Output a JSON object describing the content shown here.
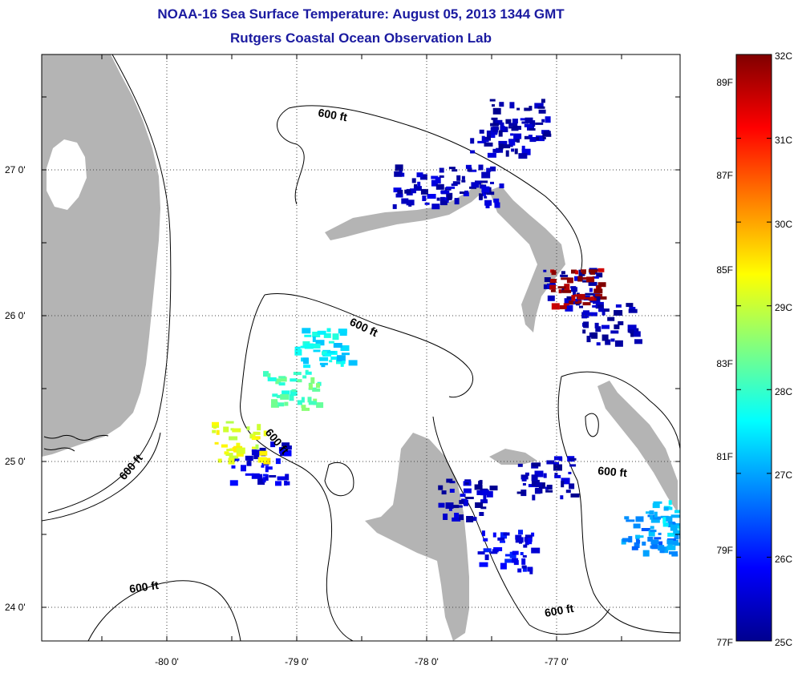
{
  "title": "NOAA-16 Sea Surface Temperature:  August 05, 2013 1344 GMT",
  "subtitle": "Rutgers Coastal Ocean Observation Lab",
  "map": {
    "x_ticks": [
      "-80 0'",
      "-79 0'",
      "-78 0'",
      "-77 0'"
    ],
    "y_ticks": [
      "27 0'",
      "26 0'",
      "25 0'",
      "24 0'"
    ],
    "contour_labels": [
      "600 ft",
      "600 ft",
      "600 ft",
      "600 ft",
      "600 ft",
      "600 ft",
      "600 ft"
    ],
    "land_color": "#b4b4b4",
    "sst_patches": [
      {
        "lon": -77.45,
        "lat": 27.25,
        "temp": 25.3
      },
      {
        "lon": -77.3,
        "lat": 27.35,
        "temp": 25.2
      },
      {
        "lon": -78.05,
        "lat": 26.9,
        "temp": 25.4
      },
      {
        "lon": -77.65,
        "lat": 26.9,
        "temp": 25.3
      },
      {
        "lon": -76.9,
        "lat": 26.2,
        "temp": 25.3
      },
      {
        "lon": -76.6,
        "lat": 25.95,
        "temp": 25.2
      },
      {
        "lon": -79.3,
        "lat": 25.0,
        "temp": 25.6
      },
      {
        "lon": -79.05,
        "lat": 25.5,
        "temp": 28.2
      },
      {
        "lon": -78.8,
        "lat": 25.8,
        "temp": 27.5
      },
      {
        "lon": -77.7,
        "lat": 24.75,
        "temp": 25.3
      },
      {
        "lon": -77.4,
        "lat": 24.4,
        "temp": 25.8
      },
      {
        "lon": -76.3,
        "lat": 24.5,
        "temp": 26.8
      },
      {
        "lon": -76.1,
        "lat": 24.6,
        "temp": 27.2
      },
      {
        "lon": -77.1,
        "lat": 24.9,
        "temp": 25.3
      },
      {
        "lon": -79.45,
        "lat": 25.15,
        "temp": 29.2
      },
      {
        "lon": -76.85,
        "lat": 26.2,
        "temp": 31.8
      }
    ]
  },
  "colorbar": {
    "celsius_labels": [
      "32C",
      "31C",
      "30C",
      "29C",
      "28C",
      "27C",
      "26C",
      "25C"
    ],
    "fahrenheit_labels": [
      "89F",
      "87F",
      "85F",
      "83F",
      "81F",
      "79F",
      "77F"
    ],
    "range_c": [
      25,
      32
    ],
    "colormap": [
      "#00008f",
      "#0000ff",
      "#0080ff",
      "#00ffff",
      "#80ff80",
      "#ffff00",
      "#ff8000",
      "#ff0000",
      "#800000"
    ]
  }
}
